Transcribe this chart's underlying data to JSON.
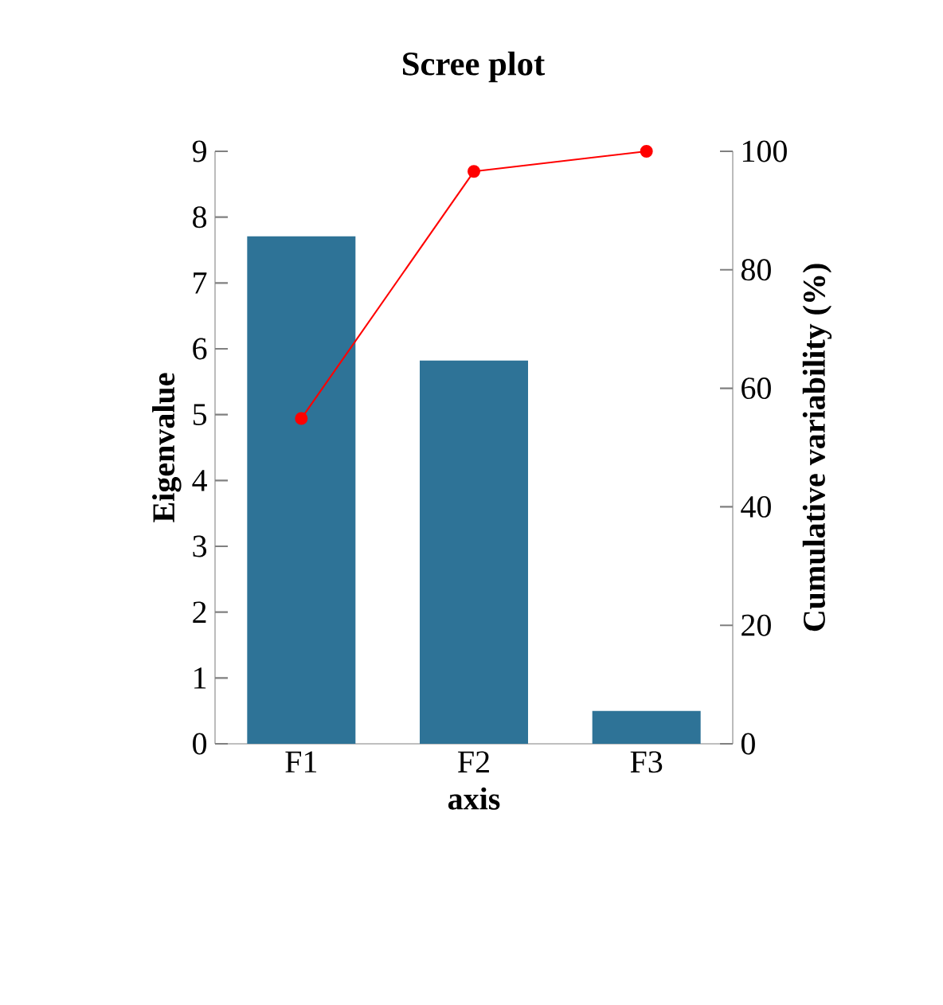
{
  "chart_data": {
    "type": "bar",
    "title": "Scree plot",
    "xlabel": "axis",
    "ylabel": "Eigenvalue",
    "y2label": "Cumulative variability (%)",
    "categories": [
      "F1",
      "F2",
      "F3"
    ],
    "series": [
      {
        "color": "#2e7397",
        "values": [
          7.71,
          5.82,
          0.5
        ]
      },
      {
        "type": "line",
        "axis": "y2",
        "color": "#ff0000",
        "marker": "circle",
        "values": [
          54.9,
          96.6,
          100
        ]
      }
    ],
    "ylim": [
      0,
      9
    ],
    "yticks": [
      0,
      1,
      2,
      3,
      4,
      5,
      6,
      7,
      8,
      9
    ],
    "y2lim": [
      0,
      100
    ],
    "y2ticks": [
      0,
      20,
      40,
      60,
      80,
      100
    ]
  }
}
